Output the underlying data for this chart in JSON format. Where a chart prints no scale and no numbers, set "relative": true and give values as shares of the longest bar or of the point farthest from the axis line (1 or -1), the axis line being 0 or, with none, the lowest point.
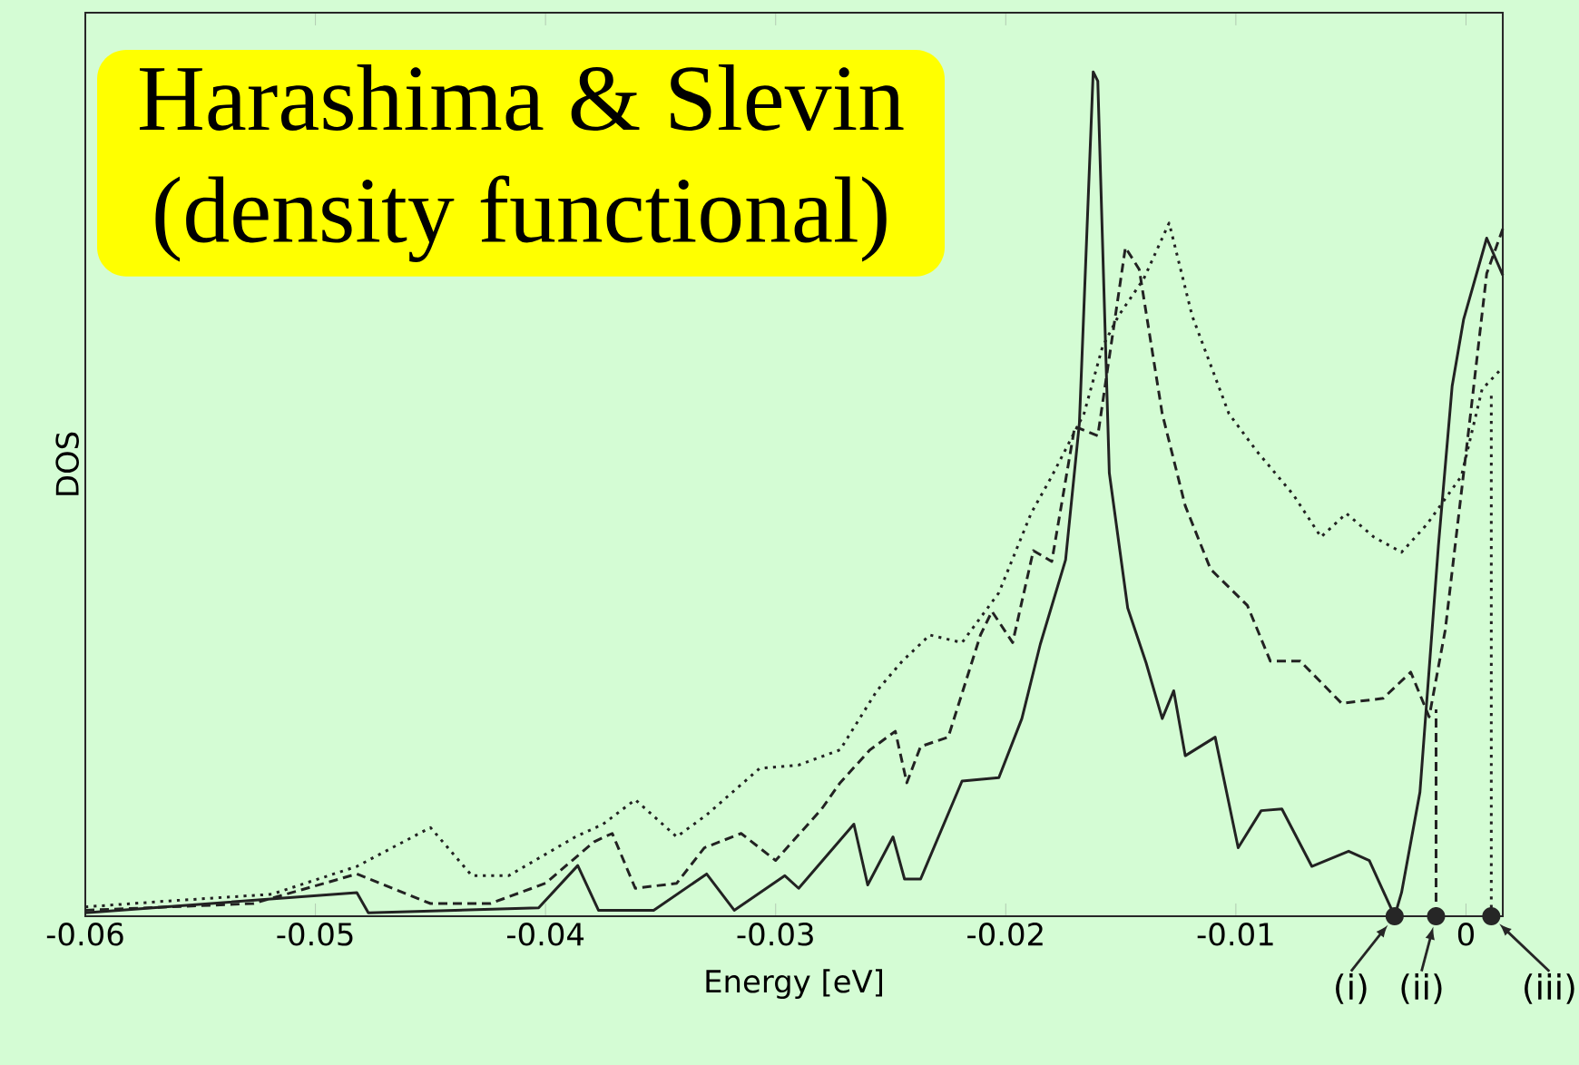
{
  "chart_data": {
    "type": "line",
    "title": "Harashima & Slevin",
    "subtitle": "(density functional)",
    "xlabel": "Energy [eV]",
    "ylabel": "DOS",
    "relative": true,
    "xlim": [
      -0.06,
      0.0016
    ],
    "xticks": [
      -0.06,
      -0.05,
      -0.04,
      -0.03,
      -0.02,
      -0.01,
      0
    ],
    "tick_labels": "x",
    "grid": false,
    "series": [
      {
        "color": "#222222",
        "line_style": "solid",
        "x": [
          -0.06,
          -0.0482,
          -0.0477,
          -0.0403,
          -0.0386,
          -0.0377,
          -0.0353,
          -0.033,
          -0.0318,
          -0.0296,
          -0.029,
          -0.0266,
          -0.026,
          -0.0249,
          -0.0244,
          -0.0237,
          -0.0219,
          -0.0203,
          -0.0193,
          -0.0185,
          -0.0174,
          -0.0168,
          -0.0162,
          -0.016,
          -0.0155,
          -0.0147,
          -0.0139,
          -0.0132,
          -0.0127,
          -0.0122,
          -0.0109,
          -0.0099,
          -0.0089,
          -0.008,
          -0.0067,
          -0.0051,
          -0.0042,
          -0.0031,
          -0.0028,
          -0.002,
          -0.0012,
          -0.0006,
          -0.0001,
          0.0009,
          0.0016
        ],
        "values": [
          0.004,
          0.028,
          0.004,
          0.01,
          0.06,
          0.007,
          0.007,
          0.05,
          0.007,
          0.048,
          0.033,
          0.109,
          0.037,
          0.094,
          0.044,
          0.044,
          0.16,
          0.164,
          0.234,
          0.322,
          0.422,
          0.584,
          1.0,
          0.989,
          0.525,
          0.365,
          0.3,
          0.234,
          0.267,
          0.19,
          0.212,
          0.081,
          0.125,
          0.127,
          0.059,
          0.077,
          0.066,
          0,
          0.028,
          0.147,
          0.438,
          0.628,
          0.707,
          0.803,
          0.759
        ]
      },
      {
        "color": "#222222",
        "line_style": "dashed",
        "x": [
          -0.06,
          -0.0527,
          -0.0482,
          -0.045,
          -0.0424,
          -0.04,
          -0.0379,
          -0.0371,
          -0.0361,
          -0.0343,
          -0.0331,
          -0.0315,
          -0.03,
          -0.028,
          -0.0272,
          -0.0259,
          -0.0248,
          -0.0243,
          -0.0237,
          -0.0225,
          -0.0211,
          -0.0206,
          -0.0197,
          -0.0188,
          -0.018,
          -0.017,
          -0.016,
          -0.0148,
          -0.0142,
          -0.0132,
          -0.0122,
          -0.0111,
          -0.0095,
          -0.0085,
          -0.0072,
          -0.0054,
          -0.0036,
          -0.0024,
          -0.0016,
          -0.0009,
          0.0002,
          0.0009,
          0.0016
        ],
        "values": [
          0.007,
          0.015,
          0.05,
          0.015,
          0.015,
          0.039,
          0.088,
          0.098,
          0.033,
          0.039,
          0.081,
          0.098,
          0.066,
          0.127,
          0.158,
          0.197,
          0.219,
          0.158,
          0.201,
          0.212,
          0.333,
          0.361,
          0.324,
          0.433,
          0.42,
          0.58,
          0.569,
          0.792,
          0.766,
          0.595,
          0.486,
          0.411,
          0.368,
          0.302,
          0.302,
          0.252,
          0.258,
          0.289,
          0.236,
          0.339,
          0.595,
          0.761,
          0.814
        ]
      },
      {
        "color": "#222222",
        "line_style": "dotted",
        "x": [
          -0.06,
          -0.0564,
          -0.0519,
          -0.0482,
          -0.045,
          -0.0432,
          -0.0416,
          -0.0387,
          -0.0375,
          -0.0361,
          -0.0343,
          -0.033,
          -0.0307,
          -0.029,
          -0.0272,
          -0.0256,
          -0.0245,
          -0.0233,
          -0.0219,
          -0.0203,
          -0.0189,
          -0.018,
          -0.0166,
          -0.0158,
          -0.0151,
          -0.014,
          -0.0129,
          -0.0119,
          -0.0103,
          -0.0091,
          -0.0075,
          -0.0063,
          -0.0052,
          -0.004,
          -0.0028,
          -0.0017,
          -0.0002,
          0.0007,
          0.0016
        ],
        "values": [
          0.011,
          0.018,
          0.026,
          0.059,
          0.105,
          0.048,
          0.048,
          0.094,
          0.109,
          0.138,
          0.094,
          0.12,
          0.175,
          0.179,
          0.197,
          0.267,
          0.302,
          0.333,
          0.324,
          0.383,
          0.477,
          0.521,
          0.595,
          0.674,
          0.711,
          0.755,
          0.821,
          0.711,
          0.595,
          0.551,
          0.499,
          0.449,
          0.477,
          0.449,
          0.431,
          0.464,
          0.521,
          0.624,
          0.65
        ]
      },
      {
        "color": "#222222",
        "line_style": "dashed",
        "x": [
          -0.0013,
          -0.0013
        ],
        "values": [
          0,
          0.245
        ]
      },
      {
        "color": "#222222",
        "line_style": "dotted",
        "x": [
          0.0011,
          0.0011
        ],
        "values": [
          0,
          0.62
        ]
      }
    ],
    "annotations": [
      {
        "text": "(i)",
        "x": -0.0031,
        "y": 0
      },
      {
        "text": "(ii)",
        "x": -0.0013,
        "y": 0
      },
      {
        "text": "(iii)",
        "x": 0.0011,
        "y": 0
      }
    ]
  }
}
